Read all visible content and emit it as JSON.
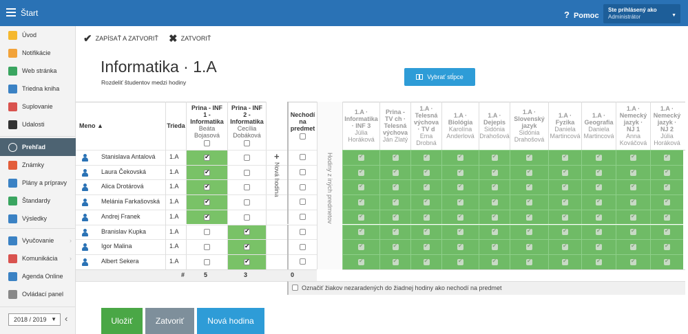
{
  "topbar": {
    "start": "Štart",
    "help": "Pomoc",
    "user_label": "Ste prihlásený ako",
    "user_name": "Administrátor"
  },
  "sidebar": {
    "items": [
      {
        "label": "Úvod",
        "color": "#f5b82e"
      },
      {
        "label": "Notifikácie",
        "color": "#f2a33a"
      },
      {
        "label": "Web stránka",
        "color": "#3aa560"
      },
      {
        "label": "Triedna kniha",
        "color": "#3b82c4"
      },
      {
        "label": "Suplovanie",
        "color": "#d9534f"
      },
      {
        "label": "Udalosti",
        "color": "#333333"
      },
      {
        "label": "Prehľad",
        "color": "#ffffff"
      },
      {
        "label": "Známky",
        "color": "#e35d3a"
      },
      {
        "label": "Plány a prípravy",
        "color": "#3b82c4"
      },
      {
        "label": "Štandardy",
        "color": "#3aa560"
      },
      {
        "label": "Výsledky",
        "color": "#3b82c4"
      },
      {
        "label": "Vyučovanie",
        "color": "#3b82c4"
      },
      {
        "label": "Komunikácia",
        "color": "#d9534f"
      },
      {
        "label": "Agenda Online",
        "color": "#3b82c4"
      },
      {
        "label": "Ovládací panel",
        "color": "#888888"
      }
    ],
    "year": "2018 / 2019"
  },
  "toolbar": {
    "save_close": "ZAPÍSAŤ A ZATVORIŤ",
    "close": "ZATVORIŤ"
  },
  "page": {
    "title": "Informatika · 1.A",
    "subtitle": "Rozdeliť študentov medzi hodiny",
    "columns_button": "Vybrať stĺpce"
  },
  "table": {
    "name_header": "Meno ▲",
    "class_header": "Trieda",
    "groups": [
      {
        "line1": "Prina - INF",
        "line2": "1 -",
        "line3": "Informatika",
        "teacher1": "Beáta",
        "teacher2": "Bojasová"
      },
      {
        "line1": "Prina - INF",
        "line2": "2 -",
        "line3": "Informatika",
        "teacher1": "Cecília",
        "teacher2": "Dobáková"
      }
    ],
    "new_hour_vertical": "Nová hodina",
    "not_attending": [
      "Nechodí",
      "na",
      "predmet"
    ],
    "other_subjects_vertical": "Hodiny z iných predmetov",
    "other_columns": [
      {
        "lines": [
          "1.A ·",
          "Informatika",
          "· INF 3"
        ],
        "teacher": [
          "Júlia",
          "Horáková"
        ]
      },
      {
        "lines": [
          "Prina -",
          "TV ch ·",
          "Telesná",
          "výchova"
        ],
        "teacher": [
          "Ján Zlatý"
        ]
      },
      {
        "lines": [
          "1.A ·",
          "Telesná",
          "výchova",
          "· TV d"
        ],
        "teacher": [
          "Ema",
          "Drobná"
        ]
      },
      {
        "lines": [
          "1.A ·",
          "Biológia"
        ],
        "teacher": [
          "Karolína",
          "Anderlová"
        ]
      },
      {
        "lines": [
          "1.A ·",
          "Dejepis"
        ],
        "teacher": [
          "Sidónia",
          "Drahošová"
        ]
      },
      {
        "lines": [
          "1.A ·",
          "Slovenský",
          "jazyk"
        ],
        "teacher": [
          "Sidónia",
          "Drahošová"
        ]
      },
      {
        "lines": [
          "1.A ·",
          "Fyzika"
        ],
        "teacher": [
          "Daniela",
          "Martincová"
        ]
      },
      {
        "lines": [
          "1.A ·",
          "Geografia"
        ],
        "teacher": [
          "Daniela",
          "Martincová"
        ]
      },
      {
        "lines": [
          "1.A ·",
          "Nemecký",
          "jazyk ·",
          "NJ 1"
        ],
        "teacher": [
          "Anna",
          "Kováčová"
        ]
      },
      {
        "lines": [
          "1.A ·",
          "Nemecký",
          "jazyk ·",
          "NJ 2"
        ],
        "teacher": [
          "Júlia",
          "Horáková"
        ]
      }
    ],
    "students": [
      {
        "name": "Stanislava Antalová",
        "class": "1.A",
        "g1": true,
        "g2": false
      },
      {
        "name": "Laura Čekovská",
        "class": "1.A",
        "g1": true,
        "g2": false
      },
      {
        "name": "Alica Drotárová",
        "class": "1.A",
        "g1": true,
        "g2": false
      },
      {
        "name": "Melánia Farkašovská",
        "class": "1.A",
        "g1": true,
        "g2": false
      },
      {
        "name": "Andrej Franek",
        "class": "1.A",
        "g1": true,
        "g2": false
      },
      {
        "name": "Branislav Kupka",
        "class": "1.A",
        "g1": false,
        "g2": true
      },
      {
        "name": "Igor Malina",
        "class": "1.A",
        "g1": false,
        "g2": true
      },
      {
        "name": "Albert Sekera",
        "class": "1.A",
        "g1": false,
        "g2": true
      }
    ],
    "count_label": "#",
    "counts": [
      "5",
      "3",
      "0"
    ],
    "mark_unassigned": "Označiť žiakov nezaradených do žiadnej hodiny ako nechodí na predmet"
  },
  "footer": {
    "save": "Uložiť",
    "close": "Zatvoriť",
    "new_hour": "Nová hodina",
    "colors": {
      "save": "#4aa746",
      "close": "#7e8f9b",
      "new_hour": "#2e9cd7"
    }
  }
}
